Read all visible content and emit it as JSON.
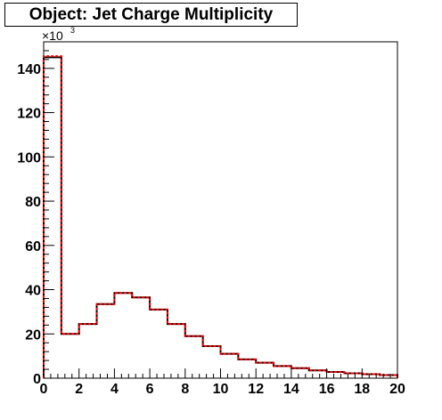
{
  "title": "Object: Jet Charge Multiplicity",
  "y_multiplier": {
    "base": "×10",
    "exponent": "3"
  },
  "chart_data": {
    "type": "histogram",
    "title": "Object: Jet Charge Multiplicity",
    "xlabel": "",
    "ylabel": "",
    "xlim": [
      0,
      20
    ],
    "ylim": [
      0,
      152
    ],
    "y_scale_factor": 1000,
    "bin_edges": [
      0,
      1,
      2,
      3,
      4,
      5,
      6,
      7,
      8,
      9,
      10,
      11,
      12,
      13,
      14,
      15,
      16,
      17,
      18,
      19,
      20
    ],
    "x_ticks": [
      0,
      2,
      4,
      6,
      8,
      10,
      12,
      14,
      16,
      18,
      20
    ],
    "x_tick_labels": [
      "0",
      "2",
      "4",
      "6",
      "8",
      "10",
      "12",
      "14",
      "16",
      "18",
      "20"
    ],
    "y_ticks": [
      0,
      20,
      40,
      60,
      80,
      100,
      120,
      140
    ],
    "y_tick_labels": [
      "0",
      "20",
      "40",
      "60",
      "80",
      "100",
      "120",
      "140"
    ],
    "series": [
      {
        "line_style": "solid",
        "color": "#000000",
        "values": [
          145,
          20,
          24.5,
          33.5,
          38.5,
          36.5,
          31,
          24.5,
          19,
          14.5,
          11,
          8.5,
          7,
          5.5,
          4.5,
          3.5,
          2.8,
          2.2,
          1.8,
          1.4
        ]
      },
      {
        "line_style": "dashed",
        "color": "#ff0000",
        "values": [
          145.5,
          20,
          24.5,
          33.5,
          38.5,
          36.5,
          31,
          24.5,
          19,
          14.5,
          11,
          8.5,
          7,
          5.5,
          4.5,
          3.5,
          2.8,
          2.2,
          1.8,
          1.4
        ]
      }
    ]
  }
}
